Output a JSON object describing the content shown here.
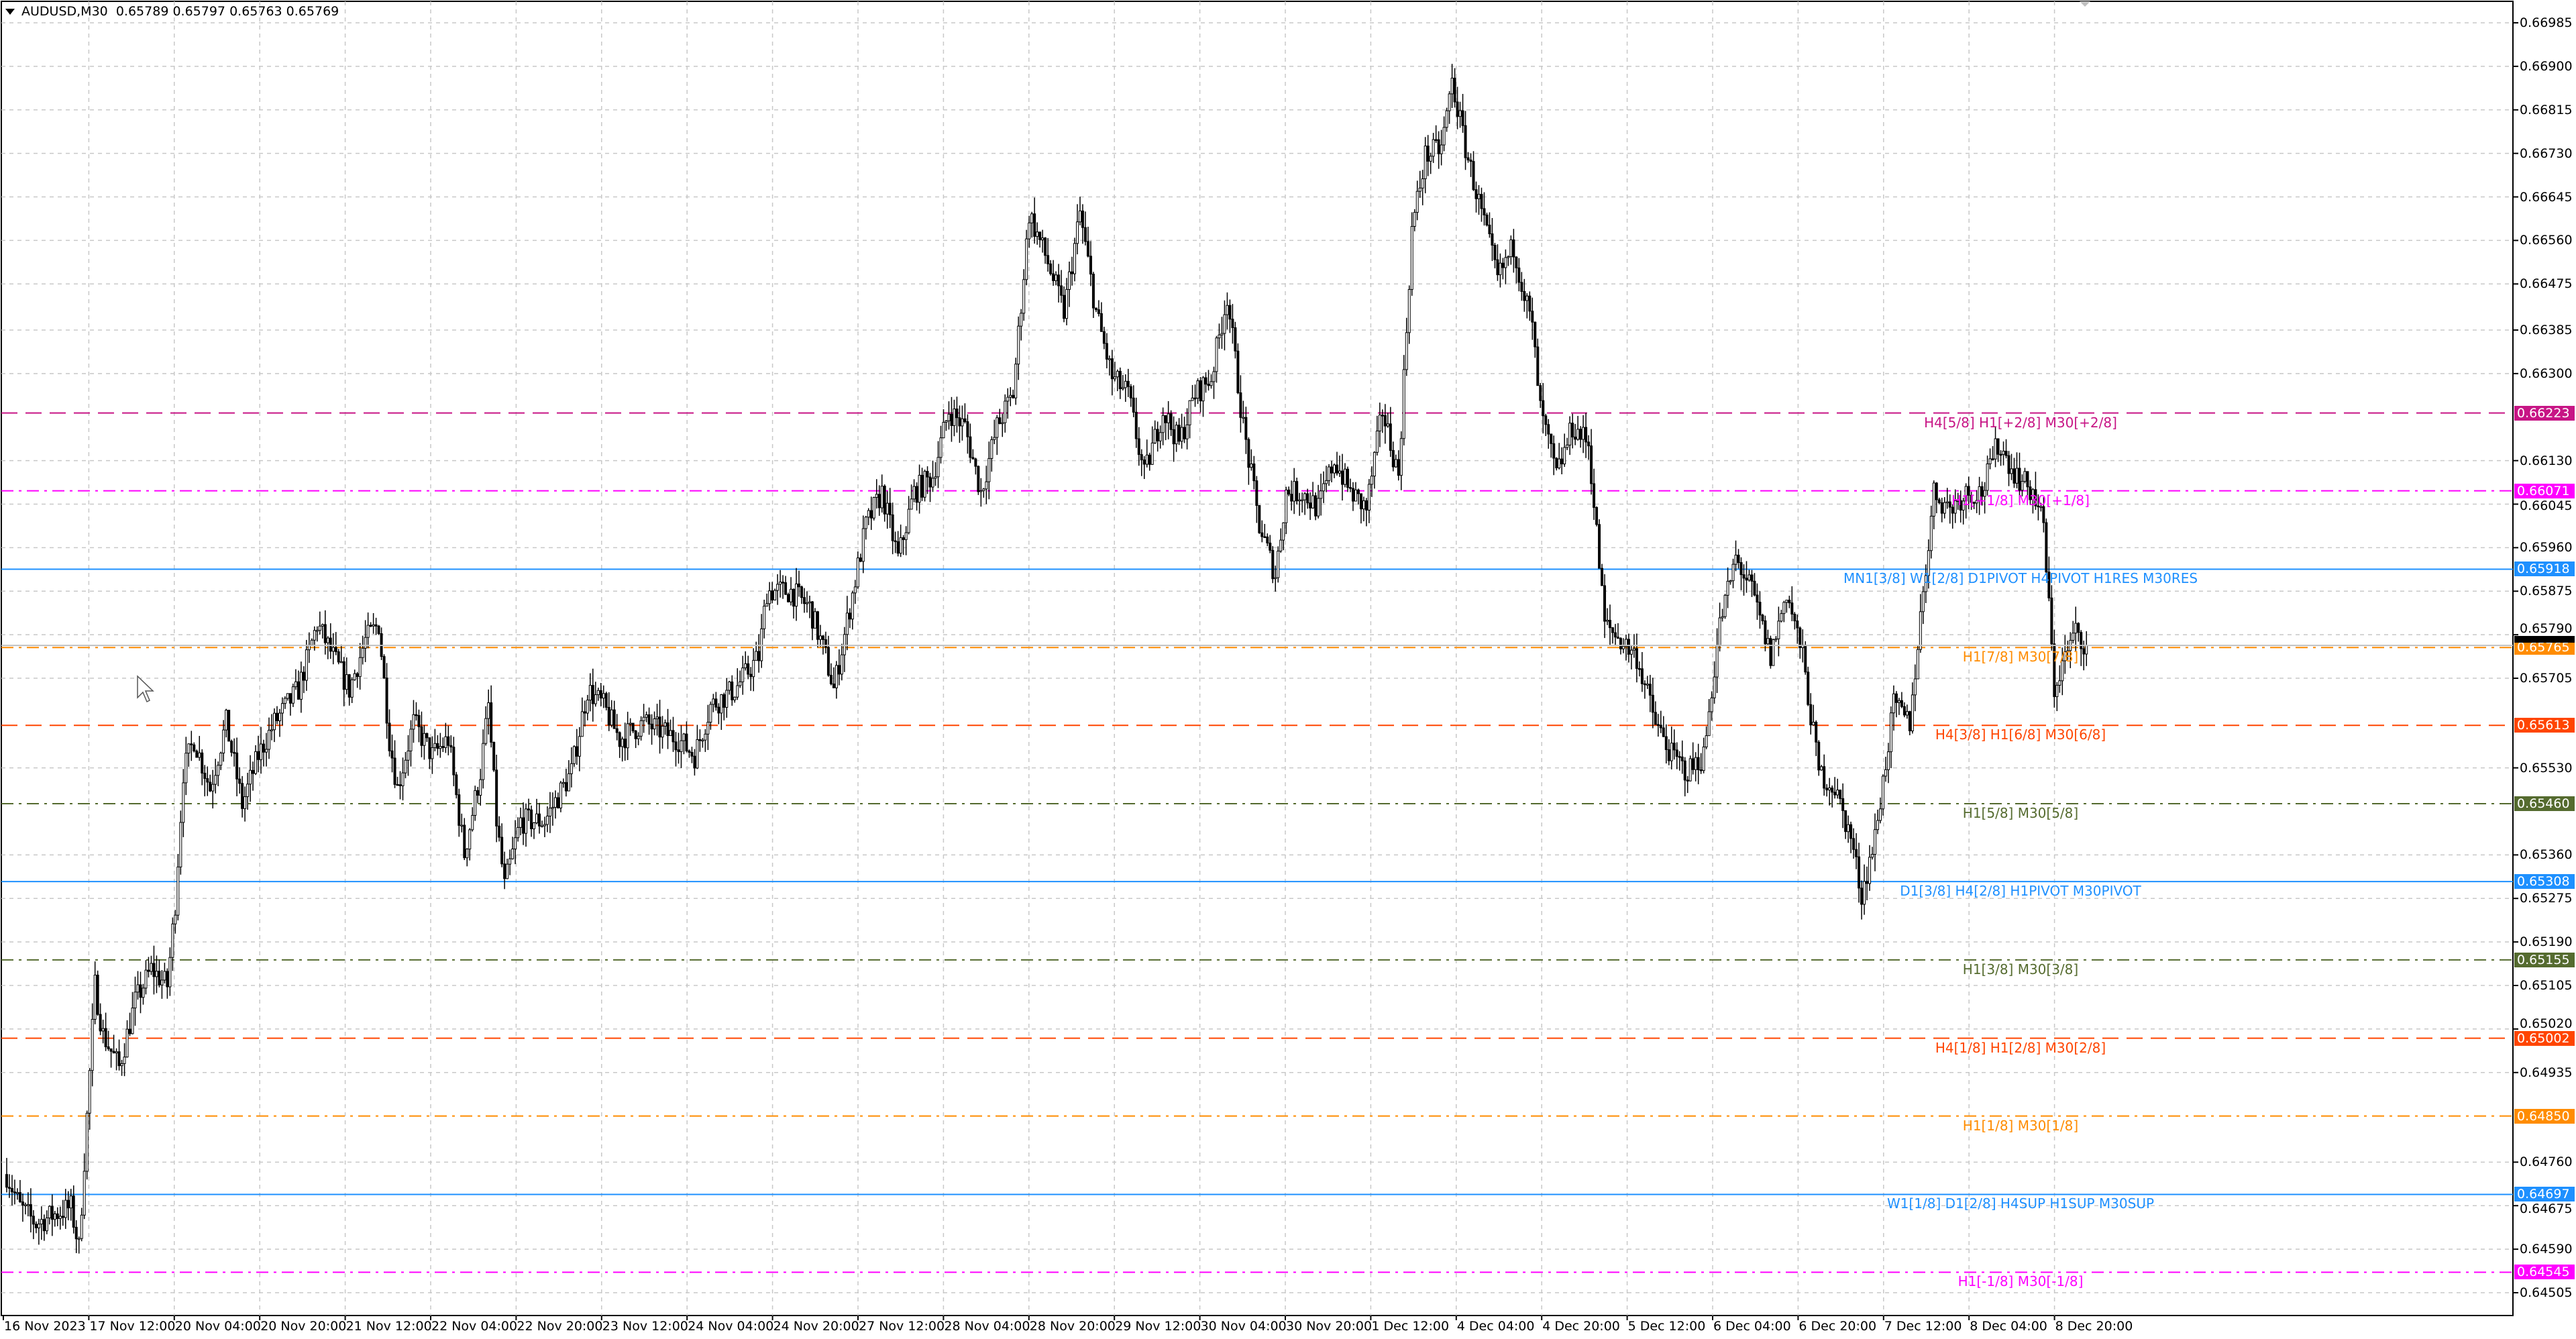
{
  "header": {
    "symbol": "AUDUSD,M30",
    "ohlc": "0.65789 0.65797 0.65763 0.65769"
  },
  "chart_data": {
    "type": "candlestick",
    "symbol": "AUDUSD",
    "timeframe": "M30",
    "ylim": [
      0.6446,
      0.6701
    ],
    "grid": true,
    "y_ticks": [
      "0.66985",
      "0.66900",
      "0.66815",
      "0.66730",
      "0.66645",
      "0.66560",
      "0.66475",
      "0.66385",
      "0.66300",
      "0.66130",
      "0.66045",
      "0.65960",
      "0.65875",
      "0.65790",
      "0.65705",
      "0.65530",
      "0.65360",
      "0.65275",
      "0.65190",
      "0.65105",
      "0.65020",
      "0.64935",
      "0.64760",
      "0.64675",
      "0.64590",
      "0.64505"
    ],
    "x_ticks": [
      "16 Nov 2023",
      "17 Nov 12:00",
      "20 Nov 04:00",
      "20 Nov 20:00",
      "21 Nov 12:00",
      "22 Nov 04:00",
      "22 Nov 20:00",
      "23 Nov 12:00",
      "24 Nov 04:00",
      "24 Nov 20:00",
      "27 Nov 12:00",
      "28 Nov 04:00",
      "28 Nov 20:00",
      "29 Nov 12:00",
      "30 Nov 04:00",
      "30 Nov 20:00",
      "1 Dec 12:00",
      "4 Dec 04:00",
      "4 Dec 20:00",
      "5 Dec 12:00",
      "6 Dec 04:00",
      "6 Dec 20:00",
      "7 Dec 12:00",
      "8 Dec 04:00",
      "8 Dec 20:00"
    ],
    "current_price": {
      "value": "0.65769",
      "color": "#000000"
    },
    "price_path_bar_close": [
      [
        1,
        0.64736
      ],
      [
        6,
        0.64672
      ],
      [
        12,
        0.6464
      ],
      [
        18,
        0.64656
      ],
      [
        25,
        0.64672
      ],
      [
        28,
        0.64592
      ],
      [
        31,
        0.64849
      ],
      [
        34,
        0.65105
      ],
      [
        37,
        0.65009
      ],
      [
        43,
        0.64945
      ],
      [
        49,
        0.65073
      ],
      [
        55,
        0.65137
      ],
      [
        61,
        0.65105
      ],
      [
        64,
        0.65266
      ],
      [
        67,
        0.65522
      ],
      [
        71,
        0.65586
      ],
      [
        77,
        0.6549
      ],
      [
        83,
        0.65618
      ],
      [
        89,
        0.65458
      ],
      [
        95,
        0.65554
      ],
      [
        101,
        0.65618
      ],
      [
        110,
        0.65683
      ],
      [
        117,
        0.65811
      ],
      [
        123,
        0.65747
      ],
      [
        129,
        0.65683
      ],
      [
        135,
        0.65779
      ],
      [
        140,
        0.65811
      ],
      [
        144,
        0.65586
      ],
      [
        147,
        0.6549
      ],
      [
        153,
        0.65618
      ],
      [
        160,
        0.65554
      ],
      [
        166,
        0.65586
      ],
      [
        172,
        0.65362
      ],
      [
        178,
        0.65522
      ],
      [
        181,
        0.65651
      ],
      [
        184,
        0.65426
      ],
      [
        187,
        0.65298
      ],
      [
        193,
        0.65426
      ],
      [
        202,
        0.65426
      ],
      [
        212,
        0.65522
      ],
      [
        218,
        0.65683
      ],
      [
        224,
        0.65651
      ],
      [
        230,
        0.65586
      ],
      [
        239,
        0.65618
      ],
      [
        252,
        0.65586
      ],
      [
        258,
        0.65554
      ],
      [
        264,
        0.65651
      ],
      [
        273,
        0.65683
      ],
      [
        282,
        0.65747
      ],
      [
        285,
        0.65875
      ],
      [
        294,
        0.65875
      ],
      [
        301,
        0.65843
      ],
      [
        307,
        0.65747
      ],
      [
        310,
        0.65683
      ],
      [
        316,
        0.65843
      ],
      [
        322,
        0.66003
      ],
      [
        328,
        0.66068
      ],
      [
        334,
        0.65939
      ],
      [
        340,
        0.66068
      ],
      [
        347,
        0.661
      ],
      [
        353,
        0.66228
      ],
      [
        359,
        0.66196
      ],
      [
        365,
        0.66068
      ],
      [
        371,
        0.66196
      ],
      [
        377,
        0.6626
      ],
      [
        383,
        0.66613
      ],
      [
        390,
        0.66517
      ],
      [
        396,
        0.6642
      ],
      [
        402,
        0.66613
      ],
      [
        408,
        0.6642
      ],
      [
        414,
        0.66292
      ],
      [
        420,
        0.6626
      ],
      [
        426,
        0.661
      ],
      [
        433,
        0.66228
      ],
      [
        439,
        0.66164
      ],
      [
        445,
        0.6626
      ],
      [
        451,
        0.66292
      ],
      [
        457,
        0.66453
      ],
      [
        463,
        0.66196
      ],
      [
        469,
        0.66003
      ],
      [
        475,
        0.65907
      ],
      [
        479,
        0.66068
      ],
      [
        485,
        0.66068
      ],
      [
        491,
        0.66036
      ],
      [
        497,
        0.66132
      ],
      [
        503,
        0.66068
      ],
      [
        509,
        0.66036
      ],
      [
        515,
        0.66228
      ],
      [
        521,
        0.661
      ],
      [
        526,
        0.66581
      ],
      [
        531,
        0.66725
      ],
      [
        537,
        0.66741
      ],
      [
        541,
        0.6687
      ],
      [
        546,
        0.66741
      ],
      [
        552,
        0.66613
      ],
      [
        558,
        0.66485
      ],
      [
        564,
        0.66549
      ],
      [
        571,
        0.66388
      ],
      [
        574,
        0.66228
      ],
      [
        580,
        0.661
      ],
      [
        586,
        0.66196
      ],
      [
        592,
        0.66164
      ],
      [
        598,
        0.65811
      ],
      [
        604,
        0.65779
      ],
      [
        610,
        0.65747
      ],
      [
        617,
        0.65618
      ],
      [
        623,
        0.65554
      ],
      [
        629,
        0.65522
      ],
      [
        635,
        0.65554
      ],
      [
        641,
        0.65811
      ],
      [
        647,
        0.65939
      ],
      [
        653,
        0.65875
      ],
      [
        660,
        0.65747
      ],
      [
        666,
        0.65875
      ],
      [
        672,
        0.65747
      ],
      [
        678,
        0.65522
      ],
      [
        684,
        0.6549
      ],
      [
        690,
        0.65394
      ],
      [
        694,
        0.65282
      ],
      [
        699,
        0.65394
      ],
      [
        706,
        0.65651
      ],
      [
        712,
        0.65618
      ],
      [
        717,
        0.65875
      ],
      [
        721,
        0.66068
      ],
      [
        727,
        0.66036
      ],
      [
        733,
        0.66068
      ],
      [
        739,
        0.66068
      ],
      [
        745,
        0.66164
      ],
      [
        752,
        0.661
      ],
      [
        758,
        0.66068
      ],
      [
        762,
        0.66003
      ],
      [
        766,
        0.65683
      ],
      [
        770,
        0.65747
      ],
      [
        774,
        0.65795
      ],
      [
        778,
        0.65769
      ]
    ],
    "levels": [
      {
        "price": "0.66223",
        "label": "H4[5/8] H1[+2/8] M30[+2/8]",
        "color": "#C71585",
        "style": "dash"
      },
      {
        "price": "0.66071",
        "label": "H1[+1/8] M30[+1/8]",
        "color": "#FF00FF",
        "style": "dashdot"
      },
      {
        "price": "0.65918",
        "label": "MN1[3/8] W1[2/8] D1PIVOT H4PIVOT H1RES M30RES",
        "color": "#1E90FF",
        "style": "solid"
      },
      {
        "price": "0.65765",
        "label": "H1[7/8] M30[7/8]",
        "color": "#FF8C00",
        "style": "dashdot"
      },
      {
        "price": "0.65613",
        "label": "H4[3/8] H1[6/8] M30[6/8]",
        "color": "#FF4500",
        "style": "dash"
      },
      {
        "price": "0.65460",
        "label": "H1[5/8] M30[5/8]",
        "color": "#556B2F",
        "style": "dashdot"
      },
      {
        "price": "0.65308",
        "label": "D1[3/8] H4[2/8] H1PIVOT M30PIVOT",
        "color": "#1E90FF",
        "style": "solid"
      },
      {
        "price": "0.65155",
        "label": "H1[3/8] M30[3/8]",
        "color": "#556B2F",
        "style": "dashdot"
      },
      {
        "price": "0.65002",
        "label": "H4[1/8] H1[2/8] M30[2/8]",
        "color": "#FF4500",
        "style": "dash"
      },
      {
        "price": "0.64850",
        "label": "H1[1/8] M30[1/8]",
        "color": "#FF8C00",
        "style": "dashdot"
      },
      {
        "price": "0.64697",
        "label": "W1[1/8] D1[2/8] H4SUP H1SUP M30SUP",
        "color": "#1E90FF",
        "style": "solid"
      },
      {
        "price": "0.64545",
        "label": "H1[-1/8] M30[-1/8]",
        "color": "#FF00FF",
        "style": "dashdot"
      }
    ]
  }
}
